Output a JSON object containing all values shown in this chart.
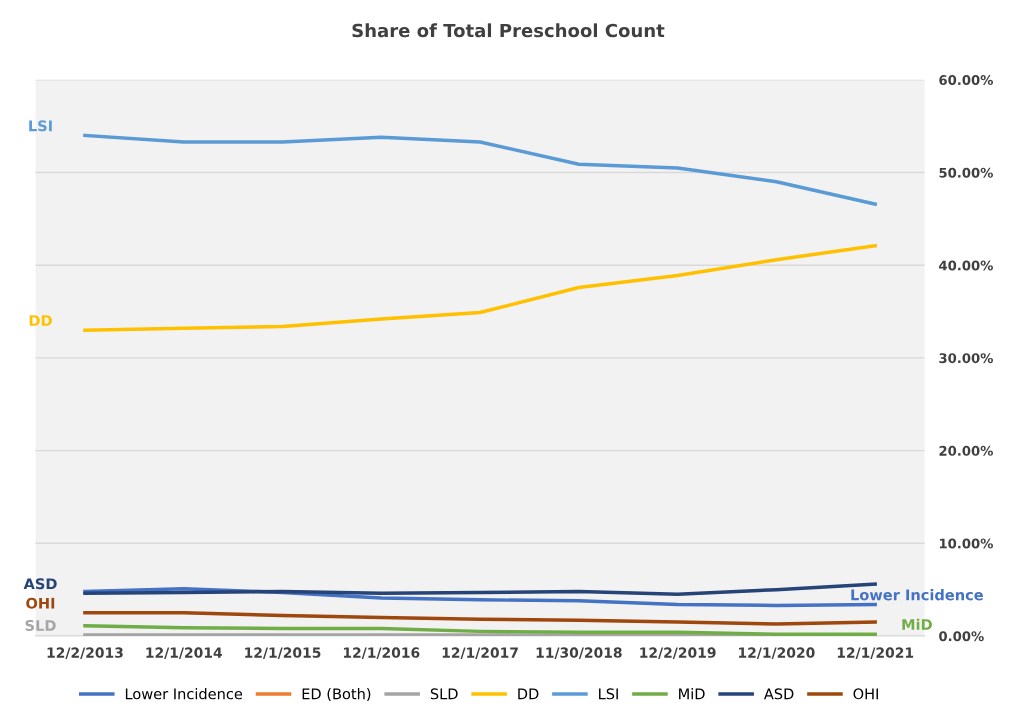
{
  "chart_data": {
    "type": "line",
    "title": "Share of Total Preschool Count",
    "categories": [
      "12/2/2013",
      "12/1/2014",
      "12/1/2015",
      "12/1/2016",
      "12/1/2017",
      "11/30/2018",
      "12/2/2019",
      "12/1/2020",
      "12/1/2021"
    ],
    "series": [
      {
        "name": "Lower Incidence",
        "color": "#4472c4",
        "values": [
          4.8,
          5.1,
          4.7,
          4.1,
          3.9,
          3.8,
          3.4,
          3.3,
          3.4
        ]
      },
      {
        "name": "ED (Both)",
        "color": "#ed7d31",
        "values": [
          null,
          null,
          null,
          null,
          null,
          null,
          null,
          null,
          null
        ]
      },
      {
        "name": "SLD",
        "color": "#a5a5a5",
        "values": [
          0.1,
          0.1,
          0.1,
          0.1,
          0.1,
          0.1,
          0.1,
          0.1,
          null
        ]
      },
      {
        "name": "DD",
        "color": "#ffc000",
        "values": [
          33.0,
          33.2,
          33.4,
          34.2,
          34.9,
          37.6,
          38.9,
          40.6,
          42.1
        ]
      },
      {
        "name": "LSI",
        "color": "#5b9bd5",
        "values": [
          54.0,
          53.3,
          53.3,
          53.8,
          53.3,
          50.9,
          50.5,
          49.0,
          46.6
        ]
      },
      {
        "name": "MiD",
        "color": "#70ad47",
        "values": [
          1.1,
          0.9,
          0.8,
          0.8,
          0.5,
          0.4,
          0.4,
          0.2,
          0.2
        ]
      },
      {
        "name": "ASD",
        "color": "#264478",
        "values": [
          4.6,
          4.7,
          4.8,
          4.6,
          4.7,
          4.8,
          4.5,
          5.0,
          5.6
        ]
      },
      {
        "name": "OHI",
        "color": "#9e480e",
        "values": [
          2.5,
          2.5,
          2.2,
          2.0,
          1.8,
          1.7,
          1.5,
          1.3,
          1.5
        ]
      }
    ],
    "annotations": [
      {
        "text": "LSI",
        "x": "12/2/2013",
        "y": 54.0
      },
      {
        "text": "DD",
        "x": "12/2/2013",
        "y": 33.0
      },
      {
        "text": "ASD",
        "x": "12/2/2013",
        "y": 4.6
      },
      {
        "text": "OHI",
        "x": "12/2/2013",
        "y": 2.5
      },
      {
        "text": "SLD",
        "x": "12/2/2013",
        "y": 0.1
      },
      {
        "text": "Lower Incidence",
        "x": "12/1/2021",
        "y": 3.4
      },
      {
        "text": "MiD",
        "x": "12/1/2021",
        "y": 0.2
      }
    ],
    "ylim": [
      0,
      60
    ],
    "yticks": [
      {
        "value": 0,
        "label": "0.00%"
      },
      {
        "value": 10,
        "label": "10.00%"
      },
      {
        "value": 20,
        "label": "20.00%"
      },
      {
        "value": 30,
        "label": "30.00%"
      },
      {
        "value": 40,
        "label": "40.00%"
      },
      {
        "value": 50,
        "label": "50.00%"
      },
      {
        "value": 60,
        "label": "60.00%"
      }
    ],
    "grid": "y",
    "legend": "bottom",
    "marker": "none",
    "line_style": "solid"
  }
}
